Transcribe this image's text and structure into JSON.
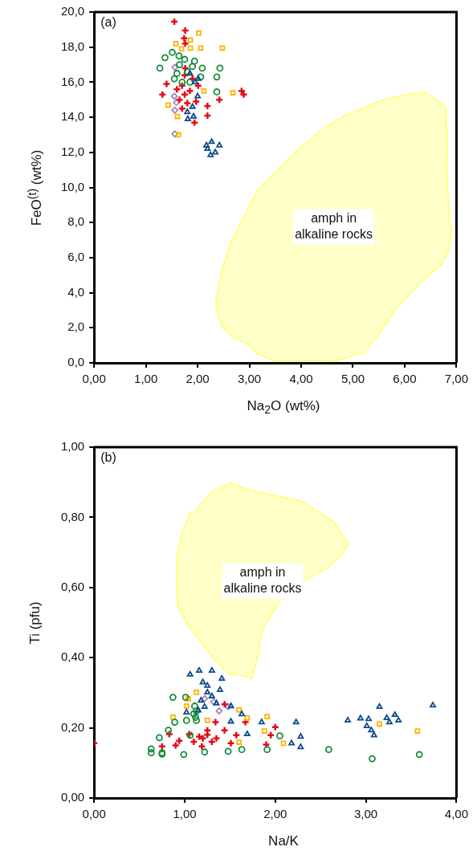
{
  "chart_data": [
    {
      "type": "scatter",
      "xlabel": "Na$_{2}$O (wt%)",
      "ylabel": "FeO$^{(t)}$ (wt%)",
      "grid": false,
      "xlim": [
        0,
        7
      ],
      "xticks": [
        {
          "value": 0,
          "label": "0,00"
        },
        {
          "value": 1,
          "label": "1,00"
        },
        {
          "value": 2,
          "label": "2,00"
        },
        {
          "value": 3,
          "label": "3,00"
        },
        {
          "value": 4,
          "label": "4,00"
        },
        {
          "value": 5,
          "label": "5,00"
        },
        {
          "value": 6,
          "label": "6,00"
        },
        {
          "value": 7,
          "label": "7,00"
        }
      ],
      "ylim": [
        0,
        20
      ],
      "yticks": [
        {
          "value": 0,
          "label": "0,0"
        },
        {
          "value": 2,
          "label": "2,0"
        },
        {
          "value": 4,
          "label": "4,0"
        },
        {
          "value": 6,
          "label": "6,0"
        },
        {
          "value": 8,
          "label": "8,0"
        },
        {
          "value": 10,
          "label": "10,0"
        },
        {
          "value": 12,
          "label": "12,0"
        },
        {
          "value": 14,
          "label": "14,0"
        },
        {
          "value": 16,
          "label": "16,0"
        },
        {
          "value": 18,
          "label": "18,0"
        },
        {
          "value": 20,
          "label": "20,0"
        }
      ],
      "annotations": [
        "(a)",
        "amph in alkaline rocks"
      ],
      "series": [
        {
          "type": "area",
          "color": "#ffff66",
          "x": [
            6.41,
            6.79,
            6.83,
            6.81,
            6.86,
            6.91,
            6.84,
            6.71,
            6.3,
            5.81,
            5.54,
            5.23,
            4.65,
            4.23,
            3.5,
            3.13,
            2.96,
            2.68,
            2.47,
            2.38,
            2.35,
            2.47,
            2.63,
            2.91,
            3.17,
            3.57,
            4.0,
            4.44,
            4.85,
            5.59,
            6.04
          ],
          "values": [
            15.4,
            14.6,
            12.3,
            11.5,
            8.0,
            7.6,
            6.4,
            5.6,
            4.6,
            3.0,
            1.8,
            0.6,
            0.1,
            0.15,
            0.1,
            0.55,
            1.1,
            1.45,
            2.1,
            2.8,
            3.5,
            5.3,
            6.8,
            8.4,
            9.9,
            11.1,
            12.3,
            13.4,
            14.1,
            15.0,
            15.3
          ]
        },
        {
          "type": "scatter",
          "marker": "triangle",
          "color": "#0d4a8c",
          "x": [
            1.92,
            1.81,
            2.17,
            2.27,
            2.42,
            2.25,
            2.34,
            2.19,
            2.01,
            1.85,
            1.95,
            2.0,
            1.9,
            1.8
          ],
          "values": [
            14.05,
            13.9,
            12.4,
            12.6,
            12.4,
            11.85,
            12.0,
            12.2,
            16.2,
            16.5,
            16.0,
            15.2,
            14.6,
            14.3
          ]
        },
        {
          "type": "scatter",
          "marker": "circle",
          "color": "#128c3c",
          "x": [
            2.43,
            2.37,
            2.37,
            1.27,
            1.37,
            1.51,
            1.64,
            1.94,
            2.09,
            2.06,
            1.6,
            1.7,
            1.8,
            1.65,
            1.75,
            1.55,
            1.9,
            1.85
          ],
          "values": [
            16.8,
            16.3,
            15.45,
            16.8,
            17.4,
            17.7,
            17.5,
            17.2,
            16.8,
            16.3,
            16.5,
            16.0,
            16.6,
            17.0,
            17.3,
            16.2,
            16.9,
            16.0
          ]
        },
        {
          "type": "scatter",
          "marker": "square",
          "color": "#ffb300",
          "x": [
            2.02,
            1.86,
            1.58,
            2.06,
            2.48,
            1.86,
            1.69,
            2.12,
            2.68,
            1.43,
            1.61,
            1.63
          ],
          "values": [
            18.8,
            18.4,
            18.2,
            17.95,
            17.95,
            17.95,
            17.9,
            15.5,
            15.4,
            14.7,
            14.05,
            13.0
          ]
        },
        {
          "type": "scatter",
          "marker": "cross",
          "color": "#e30b17",
          "x": [
            1.55,
            1.76,
            1.74,
            1.76,
            1.4,
            1.32,
            2.01,
            2.42,
            2.85,
            2.89,
            2.19,
            2.19,
            1.94,
            1.76,
            1.97,
            1.7,
            1.75,
            1.8,
            1.65,
            1.85,
            1.7,
            1.6,
            1.9,
            1.75
          ],
          "values": [
            19.45,
            18.95,
            18.5,
            18.2,
            15.9,
            15.3,
            15.8,
            15.0,
            15.5,
            15.3,
            14.65,
            14.1,
            13.7,
            16.8,
            14.9,
            15.8,
            15.3,
            14.8,
            15.0,
            15.5,
            14.5,
            15.6,
            16.2,
            16.4
          ]
        },
        {
          "type": "scatter",
          "marker": "diamond",
          "color": "#a886c0",
          "x": [
            1.56,
            1.55,
            1.59,
            1.56,
            1.56
          ],
          "values": [
            16.85,
            15.2,
            14.85,
            14.4,
            13.05
          ]
        }
      ]
    },
    {
      "type": "scatter",
      "xlabel": "Na/K",
      "ylabel": "Ti (pfu)",
      "grid": false,
      "xlim": [
        0,
        4
      ],
      "xticks": [
        {
          "value": 0,
          "label": "0,00"
        },
        {
          "value": 1,
          "label": "1,00"
        },
        {
          "value": 2,
          "label": "2,00"
        },
        {
          "value": 3,
          "label": "3,00"
        },
        {
          "value": 4,
          "label": "4,00"
        }
      ],
      "ylim": [
        0,
        1
      ],
      "yticks": [
        {
          "value": 0,
          "label": "0,00"
        },
        {
          "value": 0.2,
          "label": "0,20"
        },
        {
          "value": 0.4,
          "label": "0,40"
        },
        {
          "value": 0.6,
          "label": "0,60"
        },
        {
          "value": 0.8,
          "label": "0,80"
        },
        {
          "value": 1,
          "label": "1,00"
        }
      ],
      "annotations": [
        "(b)",
        "amph in alkaline rocks"
      ],
      "series": [
        {
          "type": "area",
          "color": "#ffff66",
          "x": [
            1.5,
            1.77,
            2.29,
            2.64,
            2.81,
            2.73,
            2.56,
            2.37,
            2.07,
            1.85,
            1.81,
            1.74,
            1.67,
            1.49,
            1.35,
            1.04,
            0.92,
            0.91,
            0.92,
            0.96,
            1.06,
            1.12,
            1.18,
            1.32
          ],
          "values": [
            0.897,
            0.874,
            0.846,
            0.789,
            0.726,
            0.694,
            0.653,
            0.628,
            0.57,
            0.478,
            0.409,
            0.34,
            0.347,
            0.354,
            0.388,
            0.49,
            0.549,
            0.63,
            0.699,
            0.745,
            0.814,
            0.814,
            0.839,
            0.876
          ]
        },
        {
          "type": "scatter",
          "marker": "triangle",
          "color": "#0d4a8c",
          "x": [
            1.06,
            1.16,
            1.3,
            1.41,
            1.39,
            1.25,
            1.18,
            1.51,
            1.02,
            1.63,
            1.51,
            1.69,
            1.85,
            2.23,
            2.28,
            2.18,
            2.28,
            2.8,
            2.94,
            3.03,
            3.01,
            3.06,
            3.09,
            3.15,
            3.23,
            3.26,
            3.32,
            3.36,
            3.74,
            1.2,
            1.25,
            1.3,
            1.22,
            1.15,
            1.35
          ],
          "values": [
            0.352,
            0.363,
            0.363,
            0.34,
            0.308,
            0.301,
            0.278,
            0.262,
            0.244,
            0.239,
            0.218,
            0.182,
            0.216,
            0.216,
            0.175,
            0.156,
            0.145,
            0.221,
            0.227,
            0.225,
            0.205,
            0.193,
            0.179,
            0.26,
            0.228,
            0.216,
            0.237,
            0.221,
            0.264,
            0.33,
            0.32,
            0.29,
            0.26,
            0.25,
            0.27
          ]
        },
        {
          "type": "scatter",
          "marker": "circle",
          "color": "#128c3c",
          "x": [
            0.87,
            1.01,
            0.89,
            1.02,
            1.13,
            0.72,
            0.82,
            0.63,
            0.63,
            0.75,
            0.99,
            1.22,
            1.48,
            1.63,
            1.91,
            2.05,
            2.59,
            3.59,
            1.11,
            1.13,
            1.06,
            3.07,
            1.1,
            1.12,
            0.75
          ],
          "values": [
            0.287,
            0.287,
            0.216,
            0.221,
            0.221,
            0.172,
            0.193,
            0.14,
            0.129,
            0.129,
            0.124,
            0.131,
            0.133,
            0.138,
            0.138,
            0.177,
            0.138,
            0.124,
            0.262,
            0.248,
            0.179,
            0.112,
            0.24,
            0.23,
            0.125
          ]
        },
        {
          "type": "scatter",
          "marker": "square",
          "color": "#ffb300",
          "x": [
            0.87,
            1.13,
            1.04,
            1.02,
            1.6,
            1.69,
            1.91,
            1.88,
            2.09,
            1.6,
            3.15,
            3.57,
            1.25
          ],
          "values": [
            0.23,
            0.301,
            0.283,
            0.262,
            0.251,
            0.228,
            0.232,
            0.191,
            0.156,
            0.159,
            0.211,
            0.191,
            0.221
          ]
        },
        {
          "type": "scatter",
          "marker": "cross",
          "color": "#e30b17",
          "x": [
            0.0,
            0.83,
            0.75,
            0.94,
            1.05,
            1.16,
            1.25,
            1.34,
            1.44,
            1.51,
            1.57,
            1.67,
            1.9,
            1.95,
            2.0,
            1.44,
            1.19,
            1.2,
            1.3,
            1.25,
            1.35,
            1.1,
            0.9
          ],
          "values": [
            0.156,
            0.182,
            0.147,
            0.163,
            0.182,
            0.175,
            0.193,
            0.216,
            0.193,
            0.156,
            0.179,
            0.216,
            0.152,
            0.179,
            0.202,
            0.267,
            0.147,
            0.17,
            0.16,
            0.18,
            0.17,
            0.16,
            0.15
          ]
        },
        {
          "type": "scatter",
          "marker": "diamond",
          "color": "#a886c0",
          "x": [
            1.22,
            1.32,
            1.38,
            1.48
          ],
          "values": [
            0.283,
            0.274,
            0.248,
            0.26
          ]
        }
      ]
    }
  ]
}
